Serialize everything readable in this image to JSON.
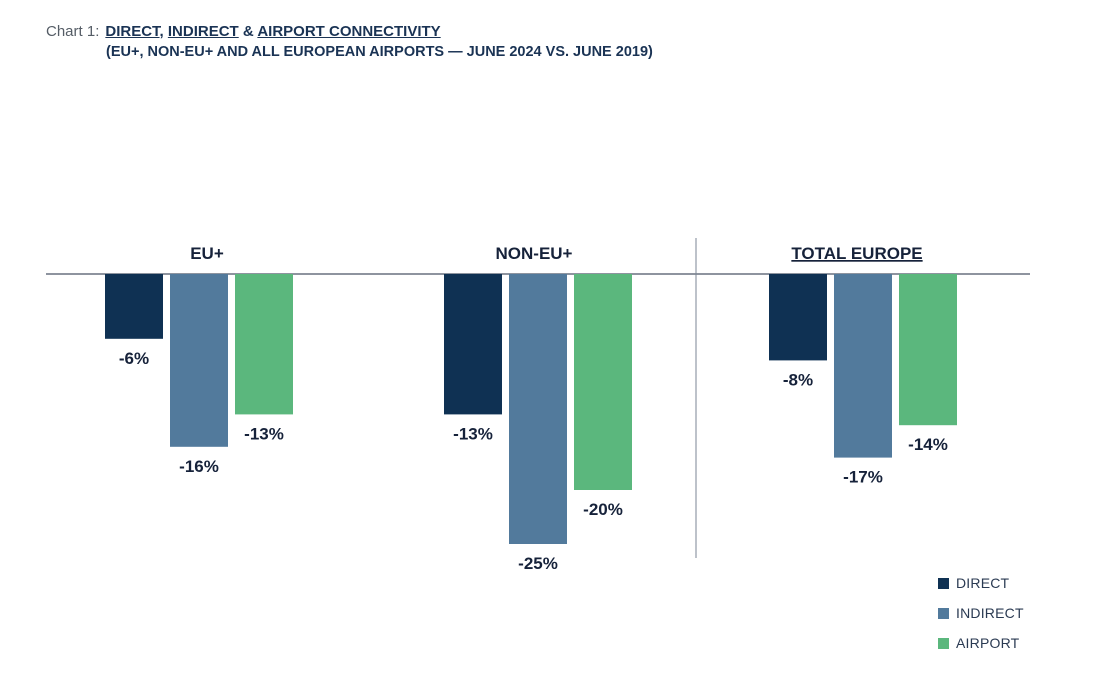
{
  "header": {
    "chart_label": "Chart 1:",
    "title_parts": [
      {
        "text": "DIRECT",
        "underline": true
      },
      {
        "text": ", ",
        "underline": false
      },
      {
        "text": "INDIRECT",
        "underline": true
      },
      {
        "text": " & ",
        "underline": false
      },
      {
        "text": "AIRPORT CONNECTIVITY",
        "underline": true
      }
    ],
    "subtitle": "(EU+, NON-EU+ AND ALL EUROPEAN AIRPORTS — JUNE 2024 VS. JUNE 2019)"
  },
  "chart_data": {
    "type": "bar",
    "categories": [
      "EU+",
      "NON-EU+",
      "TOTAL EUROPE"
    ],
    "category_underline": [
      false,
      false,
      true
    ],
    "series": [
      {
        "name": "DIRECT",
        "color": "#0f3153",
        "values": [
          -6,
          -13,
          -8
        ],
        "labels": [
          "-6%",
          "-13%",
          "-8%"
        ]
      },
      {
        "name": "INDIRECT",
        "color": "#527a9c",
        "values": [
          -16,
          -25,
          -17
        ],
        "labels": [
          "-16%",
          "-25%",
          "-17%"
        ]
      },
      {
        "name": "AIRPORT",
        "color": "#5bb77d",
        "values": [
          -13,
          -20,
          -14
        ],
        "labels": [
          "-13%",
          "-20%",
          "-14%"
        ]
      }
    ],
    "ylim": [
      -25,
      0
    ],
    "legend_position": "bottom-right",
    "grid": false
  }
}
